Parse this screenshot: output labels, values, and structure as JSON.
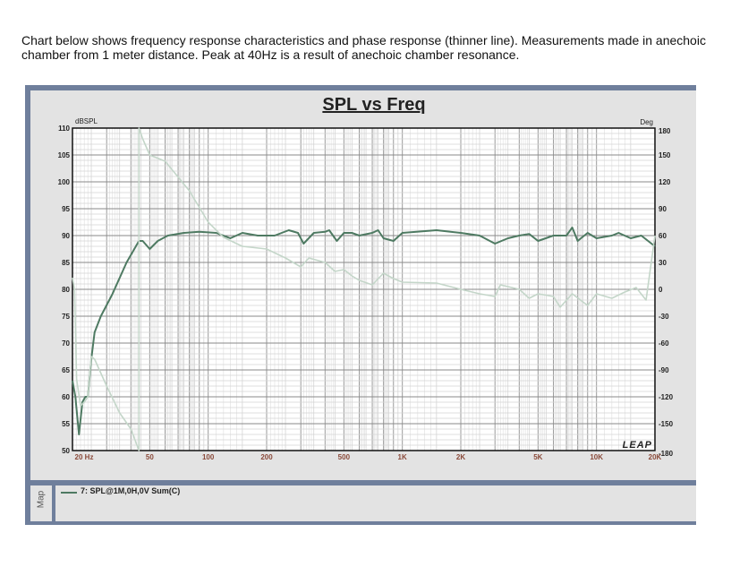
{
  "caption": "Chart below shows frequency response characteristics and phase response (thinner line). Measurements made in anechoic chamber from 1 meter distance. Peak at 40Hz is a result of anechoic chamber resonance.",
  "map_label": "Map",
  "logo": "LEAP",
  "colors": {
    "spl": "#4e7a62",
    "phase": "#c4d6c9",
    "xtick": "#8a4a3a",
    "frame": "#6f7f9c"
  },
  "chart_data": {
    "type": "line",
    "title": "SPL vs Freq",
    "ylabel": "dBSPL",
    "y2label": "Deg",
    "xscale": "log",
    "xlim": [
      20,
      20000
    ],
    "ylim": [
      50,
      110
    ],
    "y2lim": [
      -180,
      180
    ],
    "grid": true,
    "legend_position": "bottom",
    "xticks": [
      {
        "v": 20,
        "l": "20  Hz"
      },
      {
        "v": 50,
        "l": "50"
      },
      {
        "v": 100,
        "l": "100"
      },
      {
        "v": 200,
        "l": "200"
      },
      {
        "v": 500,
        "l": "500"
      },
      {
        "v": 1000,
        "l": "1K"
      },
      {
        "v": 2000,
        "l": "2K"
      },
      {
        "v": 5000,
        "l": "5K"
      },
      {
        "v": 10000,
        "l": "10K"
      },
      {
        "v": 20000,
        "l": "20K"
      }
    ],
    "yticks": [
      110,
      105,
      100,
      95,
      90,
      85,
      80,
      75,
      70,
      65,
      60,
      55,
      50
    ],
    "y2ticks": [
      180,
      150,
      120,
      90,
      60,
      30,
      0,
      -30,
      -60,
      -90,
      -120,
      -150,
      -180
    ],
    "series": [
      {
        "name": "7: SPL@1M,0H,0V Sum(C)",
        "axis": "left",
        "x": [
          20,
          20.7,
          21.6,
          22.5,
          23.3,
          24,
          25,
          26,
          28,
          32,
          38,
          44,
          46,
          50,
          55,
          62,
          75,
          90,
          110,
          130,
          150,
          180,
          220,
          260,
          290,
          310,
          350,
          400,
          420,
          460,
          500,
          550,
          600,
          700,
          750,
          800,
          900,
          1000,
          1500,
          2000,
          2500,
          3000,
          3500,
          4000,
          4500,
          5000,
          6000,
          7000,
          7500,
          8000,
          9000,
          10000,
          12000,
          13000,
          15000,
          17000,
          20000
        ],
        "y": [
          63,
          60,
          53,
          59,
          60,
          60,
          67,
          72,
          75,
          79,
          85,
          89,
          89,
          87.5,
          89,
          90,
          90.5,
          90.7,
          90.5,
          89.5,
          90.5,
          90,
          90,
          91,
          90.5,
          88.5,
          90.5,
          90.7,
          91,
          89,
          90.5,
          90.5,
          90,
          90.5,
          91,
          89.5,
          89,
          90.5,
          91,
          90.5,
          90,
          88.5,
          89.5,
          90,
          90.3,
          89,
          90,
          90,
          91.5,
          89,
          90.5,
          89.5,
          90,
          90.5,
          89.5,
          90,
          88
        ]
      },
      {
        "axis": "right",
        "x": [
          20,
          20.5,
          21,
          22,
          23,
          24,
          25,
          26,
          30,
          35,
          40,
          44,
          44,
          46,
          50,
          60,
          80,
          100,
          120,
          150,
          200,
          250,
          300,
          330,
          400,
          450,
          500,
          550,
          600,
          700,
          800,
          900,
          1000,
          1500,
          2000,
          2500,
          3000,
          3200,
          4000,
          4500,
          5000,
          6000,
          6500,
          7500,
          9000,
          10000,
          12000,
          14000,
          16000,
          18000,
          20000
        ],
        "y": [
          13,
          0,
          -100,
          -130,
          -126,
          -120,
          -75,
          -78,
          -108,
          -138,
          -156,
          -180,
          180,
          168,
          150,
          143,
          110,
          75,
          58,
          48,
          45,
          35,
          25,
          35,
          30,
          20,
          22,
          15,
          10,
          5,
          18,
          12,
          8,
          7,
          0,
          -5,
          -8,
          5,
          0,
          -10,
          -5,
          -8,
          -20,
          -5,
          -18,
          -5,
          -10,
          -3,
          2,
          -12,
          60
        ]
      }
    ]
  }
}
